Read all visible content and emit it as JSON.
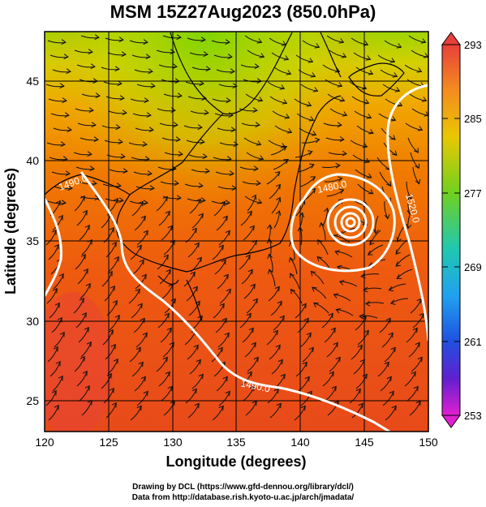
{
  "title": "MSM 15Z27Aug2023 (850.0hPa)",
  "x_axis": {
    "label": "Longitude (degrees)",
    "ticks": [
      "120",
      "125",
      "130",
      "135",
      "140",
      "145",
      "150"
    ]
  },
  "y_axis": {
    "label": "Latitude  (degrees)",
    "ticks": [
      "25",
      "30",
      "35",
      "40",
      "45"
    ]
  },
  "colorbar": {
    "ticks": [
      "293",
      "285",
      "277",
      "269",
      "261",
      "253"
    ]
  },
  "contour_labels": [
    "1490.0",
    "1480.0",
    "1520.0",
    "1490.0"
  ],
  "credits": {
    "line1": "Drawing by DCL (https://www.gfd-dennou.org/library/dcl/)",
    "line2": "Data from http://database.rish.kyoto-u.ac.jp/arch/jmadata/"
  },
  "chart_data": {
    "type": "map",
    "field": "temperature (K) with geopotential height contours and wind streamlines",
    "xlim": [
      120,
      150
    ],
    "ylim": [
      22.5,
      47.5
    ],
    "colorbar_range": [
      253,
      293
    ],
    "contour_levels": [
      1480,
      1490,
      1520
    ],
    "low_center": {
      "lon": 144,
      "lat": 36.5
    }
  }
}
